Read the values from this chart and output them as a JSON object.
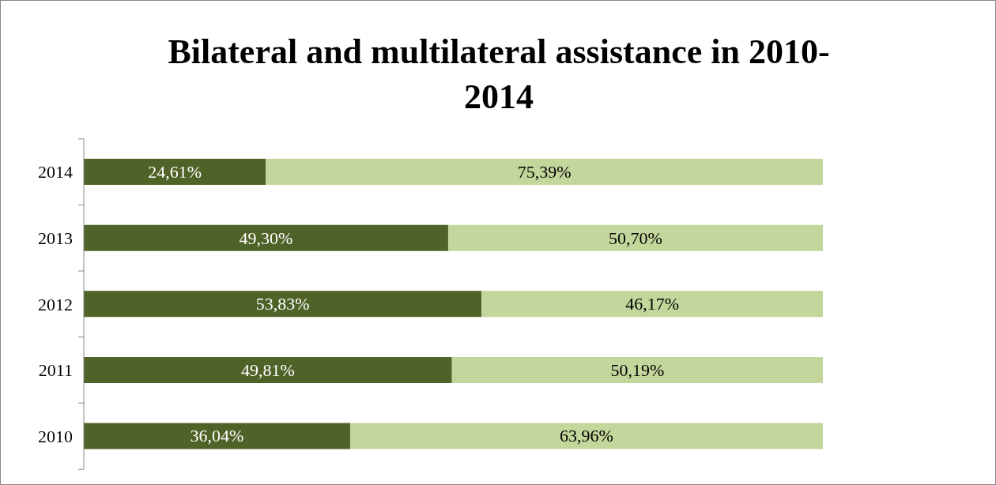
{
  "chart_data": {
    "type": "bar",
    "orientation": "horizontal",
    "stacked": true,
    "title": "Bilateral and multilateral assistance in 2010-2014",
    "categories": [
      "2014",
      "2013",
      "2012",
      "2011",
      "2010"
    ],
    "xlim": [
      0,
      100
    ],
    "tick_labels": "y",
    "grid": false,
    "legend": false,
    "series": [
      {
        "color": "#4f6228",
        "values": [
          24.61,
          49.3,
          53.83,
          49.81,
          36.04
        ],
        "value_labels": [
          "24,61%",
          "49,30%",
          "53,83%",
          "49,81%",
          "36,04%"
        ]
      },
      {
        "color": "#c3d69b",
        "values": [
          75.39,
          50.7,
          46.17,
          50.19,
          63.96
        ],
        "value_labels": [
          "75,39%",
          "50,70%",
          "46,17%",
          "50,19%",
          "63,96%"
        ]
      }
    ]
  }
}
